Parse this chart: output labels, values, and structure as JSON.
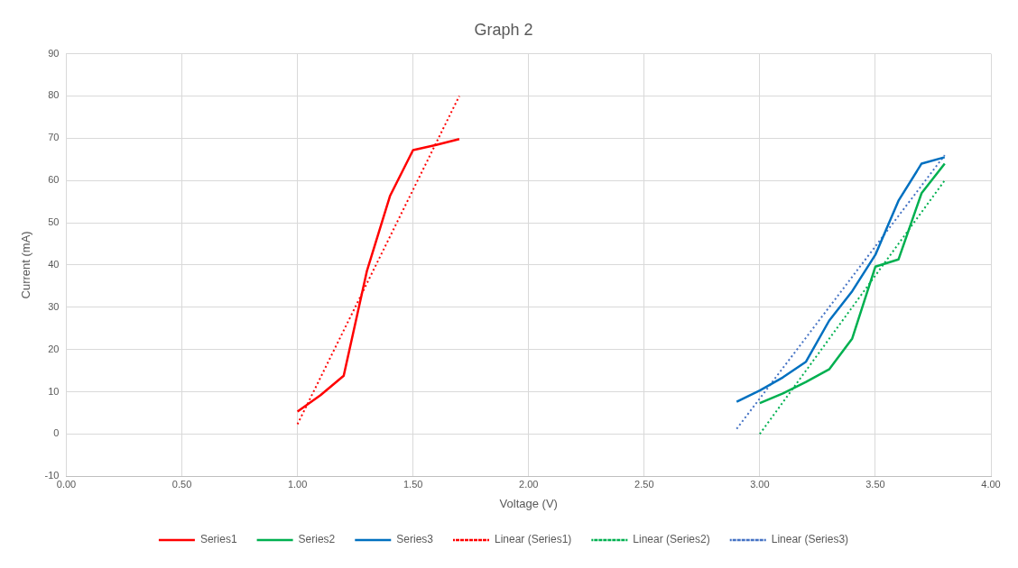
{
  "chart_data": {
    "type": "line",
    "title": "Graph 2",
    "xlabel": "Voltage (V)",
    "ylabel": "Current (mA)",
    "xlim": [
      0,
      4
    ],
    "xticks": [
      {
        "value": 0,
        "label": "0.00"
      },
      {
        "value": 0.5,
        "label": "0.50"
      },
      {
        "value": 1,
        "label": "1.00"
      },
      {
        "value": 1.5,
        "label": "1.50"
      },
      {
        "value": 2,
        "label": "2.00"
      },
      {
        "value": 2.5,
        "label": "2.50"
      },
      {
        "value": 3,
        "label": "3.00"
      },
      {
        "value": 3.5,
        "label": "3.50"
      },
      {
        "value": 4,
        "label": "4.00"
      }
    ],
    "ylim": [
      -10,
      90
    ],
    "yticks": [
      -10,
      0,
      10,
      20,
      30,
      40,
      50,
      60,
      70,
      80,
      90
    ],
    "grid": true,
    "legend": "bottom",
    "marker": "none",
    "series": [
      {
        "name": "Series1",
        "color": "#ff0000",
        "line_style": "solid",
        "x": [
          1.0,
          1.1,
          1.2,
          1.3,
          1.4,
          1.5,
          1.6,
          1.7
        ],
        "values": [
          5.3,
          9.2,
          13.8,
          38.5,
          56.3,
          67.2,
          68.4,
          69.8
        ]
      },
      {
        "name": "Series2",
        "color": "#00b050",
        "line_style": "solid",
        "x": [
          3.0,
          3.1,
          3.2,
          3.3,
          3.4,
          3.5,
          3.6,
          3.7,
          3.8
        ],
        "values": [
          7.3,
          9.6,
          12.3,
          15.3,
          22.6,
          39.6,
          41.3,
          57,
          64
        ]
      },
      {
        "name": "Series3",
        "color": "#0070c0",
        "line_style": "solid",
        "x": [
          2.9,
          3.0,
          3.1,
          3.2,
          3.3,
          3.4,
          3.5,
          3.6,
          3.7,
          3.8
        ],
        "values": [
          7.6,
          10.3,
          13.4,
          17.1,
          26.8,
          33.8,
          42.4,
          55.2,
          64,
          65.5
        ]
      },
      {
        "name": "Linear (Series1)",
        "color": "#ff0000",
        "line_style": "dotted",
        "x": [
          1.0,
          1.7
        ],
        "values": [
          2.3,
          80
        ]
      },
      {
        "name": "Linear (Series2)",
        "color": "#00b050",
        "line_style": "dotted",
        "x": [
          3.0,
          3.8
        ],
        "values": [
          0,
          60
        ]
      },
      {
        "name": "Linear (Series3)",
        "color": "#4472c4",
        "line_style": "dotted",
        "x": [
          2.9,
          3.8
        ],
        "values": [
          1.2,
          66
        ]
      }
    ]
  }
}
